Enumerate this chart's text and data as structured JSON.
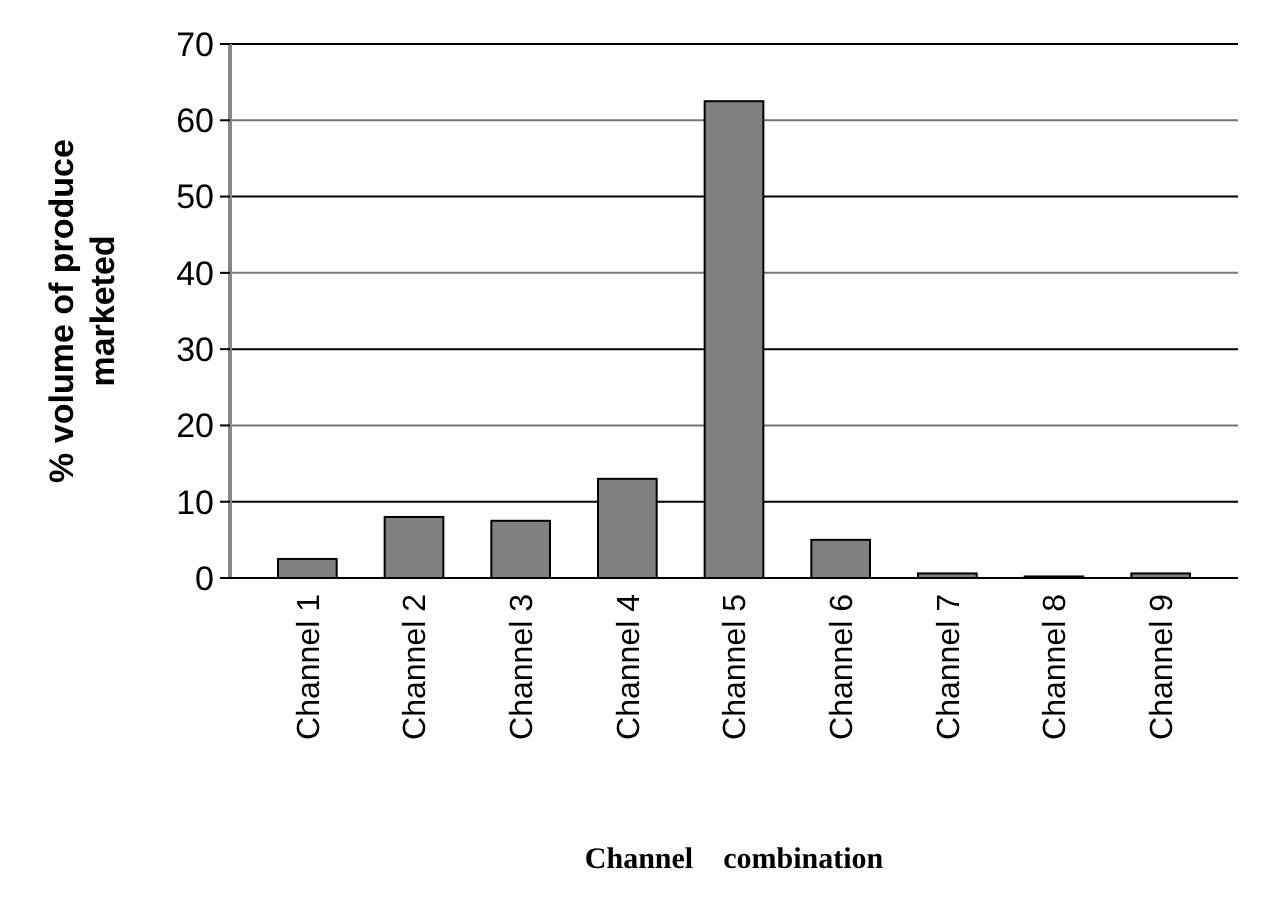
{
  "chart_data": {
    "type": "bar",
    "xlabel": "Channel    combination",
    "ylabel": "% volume of produce marketed",
    "categories": [
      "Channel 1",
      "Channel 2",
      "Channel 3",
      "Channel 4",
      "Channel 5",
      "Channel 6",
      "Channel 7",
      "Channel 8",
      "Channel 9"
    ],
    "values": [
      2.5,
      8,
      7.5,
      13,
      62.5,
      5,
      0.6,
      0.2,
      0.6
    ],
    "color": "#808080",
    "ylim": [
      0,
      70
    ],
    "yticks": [
      0,
      10,
      20,
      30,
      40,
      50,
      60,
      70
    ],
    "grid": "y"
  }
}
